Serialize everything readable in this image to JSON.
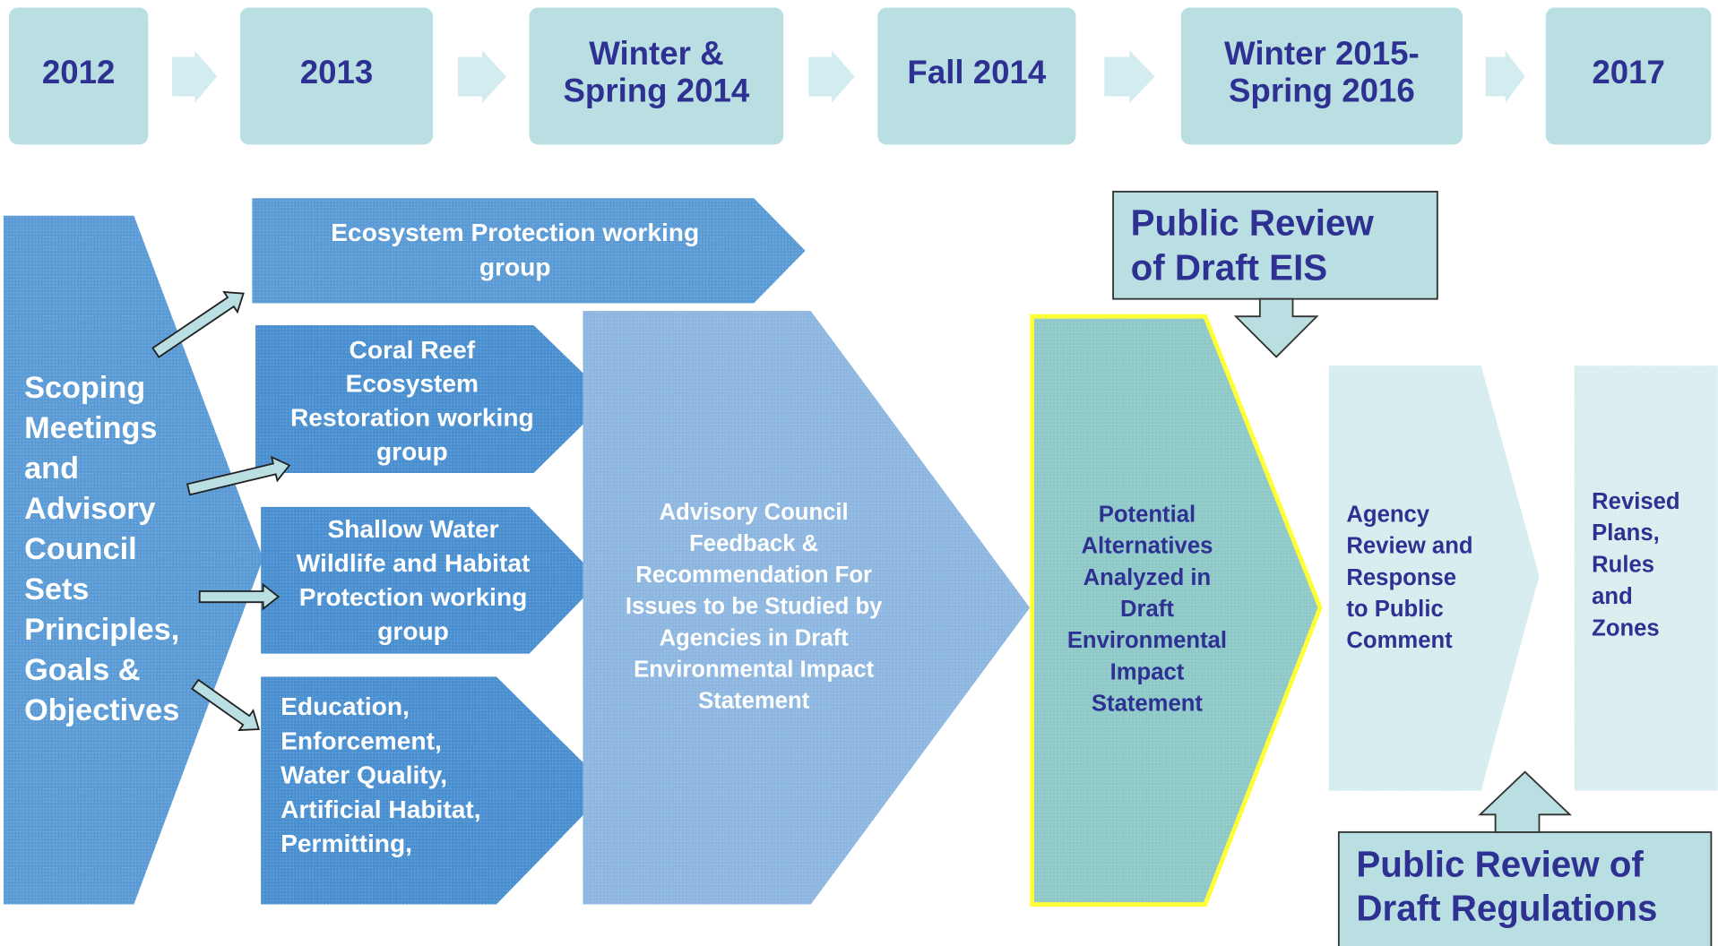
{
  "timeline": [
    {
      "lines": [
        "2012"
      ]
    },
    {
      "lines": [
        "2013"
      ]
    },
    {
      "lines": [
        "Winter &",
        "Spring  2014"
      ]
    },
    {
      "lines": [
        "Fall 2014"
      ]
    },
    {
      "lines": [
        "Winter 2015-",
        "Spring 2016"
      ]
    },
    {
      "lines": [
        "2017"
      ]
    }
  ],
  "scoping": {
    "lines": [
      "Scoping",
      "Meetings",
      "and",
      "Advisory",
      "Council",
      "Sets",
      "Principles,",
      "Goals &",
      "Objectives"
    ]
  },
  "working_groups": [
    {
      "lines": [
        "Ecosystem Protection working",
        "group"
      ]
    },
    {
      "lines": [
        "Coral Reef",
        "Ecosystem",
        "Restoration working",
        "group"
      ]
    },
    {
      "lines": [
        "Shallow Water",
        "Wildlife and Habitat",
        "Protection working",
        "group"
      ]
    },
    {
      "lines": [
        "Education,",
        "Enforcement,",
        "Water Quality,",
        "Artificial Habitat,",
        "Permitting,"
      ]
    }
  ],
  "advisory": {
    "lines": [
      "Advisory Council",
      "Feedback &",
      "Recommendation For",
      "Issues to be Studied by",
      "Agencies in Draft",
      "Environmental Impact",
      "Statement"
    ]
  },
  "draft_eis": {
    "lines": [
      "Potential",
      "Alternatives",
      "Analyzed in",
      "Draft",
      "Environmental",
      "Impact",
      "Statement"
    ]
  },
  "agency": {
    "lines": [
      "Agency",
      "Review and",
      "Response",
      "to Public",
      "Comment"
    ]
  },
  "revised": {
    "lines": [
      "Revised",
      "Plans,",
      "Rules",
      "and",
      "Zones"
    ]
  },
  "callouts": [
    {
      "lines": [
        "Public Review",
        "of Draft EIS"
      ]
    },
    {
      "lines": [
        "Public Review of",
        "Draft Regulations"
      ]
    }
  ]
}
